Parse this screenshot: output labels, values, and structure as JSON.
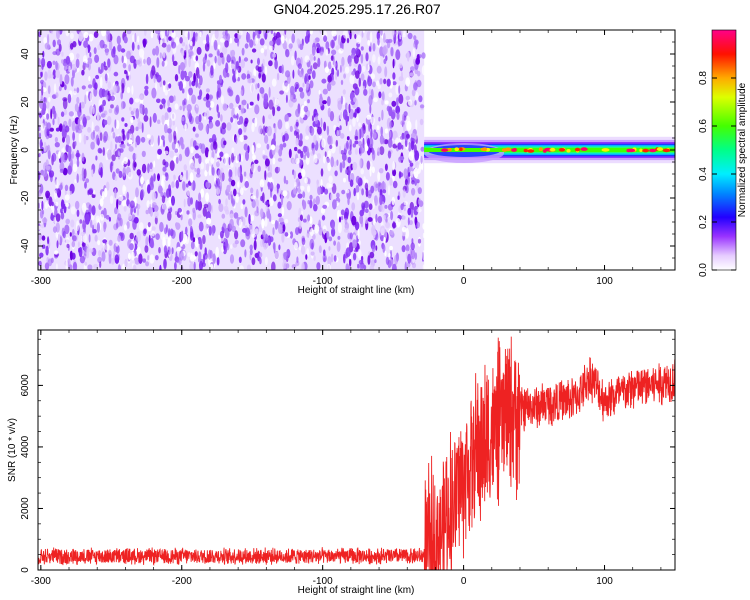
{
  "title": "GN04.2025.295.17.26.R07",
  "chart_data": [
    {
      "type": "heatmap",
      "name": "spectrogram",
      "xlabel": "Height of straight line (km)",
      "ylabel": "Frequency (Hz)",
      "xlim": [
        -302,
        150
      ],
      "ylim": [
        -50,
        50
      ],
      "xticks": [
        -300,
        -200,
        -100,
        0,
        100
      ],
      "yticks": [
        -40,
        -20,
        0,
        20,
        40
      ],
      "noise_region_x": [
        -302,
        -28
      ],
      "signal_region_x": [
        -28,
        150
      ],
      "signal_center_freq": 0,
      "signal_core_halfwidth_hz": 2.5,
      "signal_peak_amplitude": 0.95,
      "colorbar": {
        "label": "Normalized spectral amplitude",
        "range": [
          0.0,
          1.0
        ],
        "ticks": [
          0.0,
          0.2,
          0.4,
          0.6,
          0.8
        ],
        "tick_labels": [
          "0.0",
          "0.2",
          "0.4",
          "0.6",
          "0.8"
        ],
        "colors": [
          "#ffffff",
          "#cc99ff",
          "#7a00e6",
          "#0000ff",
          "#00ccff",
          "#00ff66",
          "#66ff00",
          "#ffff00",
          "#ff9900",
          "#ff0000",
          "#ff0099"
        ]
      }
    },
    {
      "type": "line",
      "name": "snr",
      "xlabel": "Height of straight line (km)",
      "ylabel": "SNR (10 * v/v)",
      "xlim": [
        -302,
        150
      ],
      "ylim": [
        0,
        7800
      ],
      "xticks": [
        -300,
        -200,
        -100,
        0,
        100
      ],
      "yticks": [
        0,
        2000,
        4000,
        6000
      ],
      "color": "#ee2222",
      "series_trend": {
        "x": [
          -302,
          -50,
          -28,
          -20,
          -10,
          0,
          10,
          20,
          30,
          40,
          60,
          80,
          90,
          100,
          120,
          150
        ],
        "y": [
          450,
          450,
          450,
          900,
          2000,
          3000,
          3800,
          4400,
          5000,
          5200,
          5400,
          5600,
          6300,
          5500,
          5900,
          6200
        ]
      }
    }
  ]
}
